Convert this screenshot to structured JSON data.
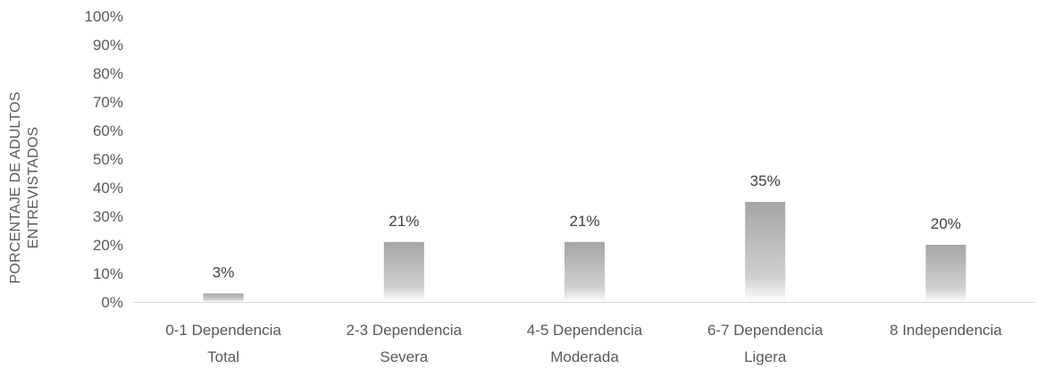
{
  "chart_data": {
    "type": "bar",
    "categories": [
      [
        "0-1 Dependencia",
        "Total"
      ],
      [
        "2-3 Dependencia",
        "Severa"
      ],
      [
        "4-5 Dependencia",
        "Moderada"
      ],
      [
        "6-7 Dependencia",
        "Ligera"
      ],
      [
        "8 Independencia"
      ]
    ],
    "values": [
      3,
      21,
      21,
      35,
      20
    ],
    "data_labels": [
      "3%",
      "21%",
      "21%",
      "35%",
      "20%"
    ],
    "ylabel_lines": [
      "PORCENTAJE DE ADULTOS",
      "ENTREVISTADOS"
    ],
    "ylim": [
      0,
      100
    ],
    "yticks": [
      0,
      10,
      20,
      30,
      40,
      50,
      60,
      70,
      80,
      90,
      100
    ],
    "ytick_labels": [
      "0%",
      "10%",
      "20%",
      "30%",
      "40%",
      "50%",
      "60%",
      "70%",
      "80%",
      "90%",
      "100%"
    ],
    "grid": false,
    "legend": "none",
    "bar_color_top": "#a6a6a6",
    "bar_color_bottom": "#ffffff",
    "axis_color": "#d9d9d9"
  }
}
